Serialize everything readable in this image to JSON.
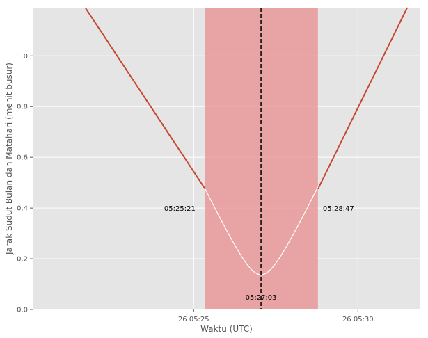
{
  "chart_data": {
    "type": "line",
    "xlabel": "Waktu (UTC)",
    "ylabel": "Jarak Sudut Bulan dan Matahari (menit busur)",
    "x_tick_labels": [
      "26 05:25",
      "26 05:30"
    ],
    "x_ticks_minutes_after_0500": [
      25,
      30
    ],
    "y_ticks": [
      0.0,
      0.2,
      0.4,
      0.6,
      0.8,
      1.0
    ],
    "xlim_minutes_after_0500": [
      20.1,
      31.9
    ],
    "ylim": [
      0,
      1.19
    ],
    "grid": true,
    "eclipse_interval": {
      "start_label": "05:25:21",
      "end_label": "05:28:47",
      "start_minutes": 25.35,
      "end_minutes": 28.783,
      "color": "#e89494"
    },
    "maximum": {
      "label": "05:27:03",
      "minutes": 27.05,
      "value": 0.137
    },
    "series": [
      {
        "x_minutes_after_0500": [
          21.7,
          25.35,
          27.05,
          28.783,
          31.5
        ],
        "values": [
          1.19,
          0.475,
          0.137,
          0.475,
          1.19
        ]
      }
    ],
    "colors": {
      "outside_line": "#c7472f",
      "inside_line": "#ffffff",
      "max_line": "#000000",
      "background": "#e5e5e5",
      "grid": "#ffffff"
    }
  }
}
